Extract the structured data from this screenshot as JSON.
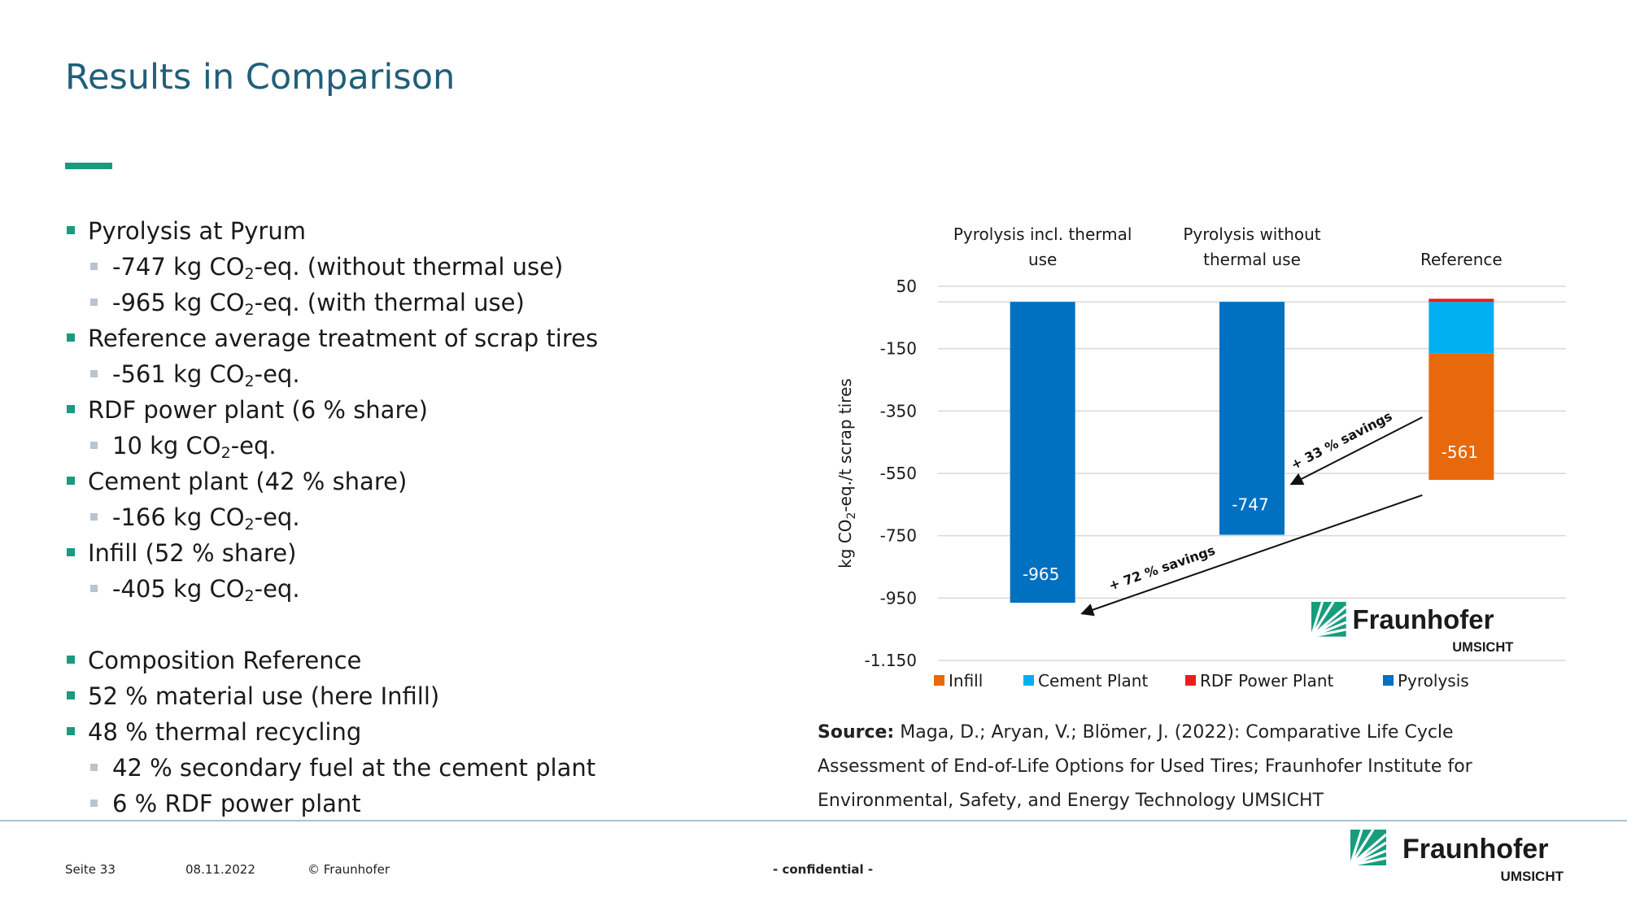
{
  "slide": {
    "title": "Results in Comparison",
    "bullets": [
      {
        "level": 1,
        "text": "Pyrolysis at Pyrum"
      },
      {
        "level": 2,
        "pre": "-747 kg CO",
        "sub": "2",
        "post": "-eq. (without thermal use)"
      },
      {
        "level": 2,
        "pre": "-965 kg CO",
        "sub": "2",
        "post": "-eq. (with thermal use)"
      },
      {
        "level": 1,
        "text": "Reference average treatment of scrap tires"
      },
      {
        "level": 2,
        "pre": "-561 kg CO",
        "sub": "2",
        "post": "-eq."
      },
      {
        "level": 1,
        "text": "RDF power plant (6 % share)"
      },
      {
        "level": 2,
        "pre": "10 kg CO",
        "sub": "2",
        "post": "-eq."
      },
      {
        "level": 1,
        "text": "Cement plant (42 % share)"
      },
      {
        "level": 2,
        "pre": "-166 kg CO",
        "sub": "2",
        "post": "-eq."
      },
      {
        "level": 1,
        "text": "Infill (52 % share)"
      },
      {
        "level": 2,
        "pre": "-405 kg CO",
        "sub": "2",
        "post": "-eq."
      },
      {
        "level": 0,
        "text": ""
      },
      {
        "level": 1,
        "text": "Composition Reference"
      },
      {
        "level": 1,
        "text": "52 % material use (here Infill)"
      },
      {
        "level": 1,
        "text": "48 % thermal recycling"
      },
      {
        "level": 2,
        "text": "42 % secondary fuel at the cement plant"
      },
      {
        "level": 2,
        "text": "6 % RDF power plant"
      }
    ]
  },
  "chart_data": {
    "type": "bar",
    "stacked": true,
    "categories": [
      "Pyrolysis incl. thermal use",
      "Pyrolysis without thermal use",
      "Reference"
    ],
    "category_label_lines": [
      [
        "Pyrolysis incl. thermal",
        "use"
      ],
      [
        "Pyrolysis without",
        "thermal use"
      ],
      [
        "Reference"
      ]
    ],
    "ylabel": "kg CO2-eq./t scrap tires",
    "ylabel_parts": {
      "pre": "kg CO",
      "sub": "2",
      "post": "-eq./t scrap tires"
    },
    "ylim": [
      -1150,
      50
    ],
    "yticks": [
      50,
      -150,
      -350,
      -550,
      -750,
      -950,
      -1150
    ],
    "ytick_labels": [
      "50",
      "-150",
      "-350",
      "-550",
      "-750",
      "-950",
      "-1.150"
    ],
    "series": [
      {
        "name": "Infill",
        "color": "#e8690b",
        "values": [
          0,
          0,
          -405
        ]
      },
      {
        "name": "Cement Plant",
        "color": "#00b0f0",
        "values": [
          0,
          0,
          -166
        ]
      },
      {
        "name": "RDF Power Plant",
        "color": "#ee1c1c",
        "values": [
          0,
          0,
          10
        ]
      },
      {
        "name": "Pyrolysis",
        "color": "#0070c0",
        "values": [
          -965,
          -747,
          0
        ]
      }
    ],
    "stack_order": [
      "Cement Plant",
      "Infill",
      "Pyrolysis"
    ],
    "totals": [
      "-965",
      "-747",
      "-561"
    ],
    "annotations": [
      {
        "text": "+ 33 % savings",
        "from_category": 2,
        "from_value": -370,
        "to_category": 1,
        "to_value": -585
      },
      {
        "text": "+ 72 % savings",
        "from_category": 2,
        "from_value": -620,
        "to_category": 0,
        "to_value": -1000
      }
    ],
    "legend_position": "bottom",
    "grid": true
  },
  "logo": {
    "name": "Fraunhofer",
    "sub": "UMSICHT",
    "color": "#179c7d"
  },
  "source": {
    "label": "Source:",
    "text": "Maga, D.; Aryan, V.; Blömer, J. (2022): Comparative Life Cycle Assessment of End-of-Life Options for Used Tires; Fraunhofer Institute for Environmental, Safety, and Energy Technology UMSICHT"
  },
  "footer": {
    "page": "Seite 33",
    "date": "08.11.2022",
    "copyright": "© Fraunhofer",
    "confidential": "- confidential -"
  }
}
